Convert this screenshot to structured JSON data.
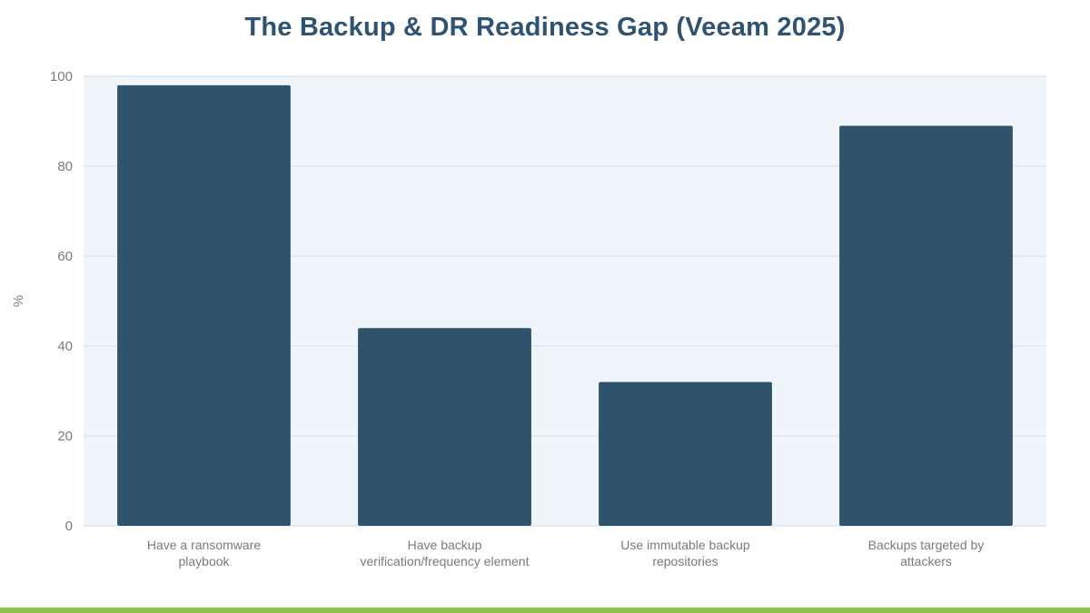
{
  "colors": {
    "bar": "#2f536b",
    "plot_bg": "#f0f5f9",
    "grid": "#dde6ee",
    "axis_text": "#7a7a7a",
    "title": "#2f5370",
    "accent_bar": "#8bc34a"
  },
  "chart_data": {
    "type": "bar",
    "title": "The Backup & DR Readiness Gap (Veeam 2025)",
    "xlabel": "",
    "ylabel": "%",
    "ylim": [
      0,
      100
    ],
    "yticks": [
      0,
      20,
      40,
      60,
      80,
      100
    ],
    "grid": true,
    "legend": "none",
    "categories": [
      [
        "Have a ransomware",
        "playbook"
      ],
      [
        "Have backup",
        "verification/frequency element"
      ],
      [
        "Use immutable backup",
        "repositories"
      ],
      [
        "Backups targeted by",
        "attackers"
      ]
    ],
    "values": [
      98,
      44,
      32,
      89
    ]
  }
}
